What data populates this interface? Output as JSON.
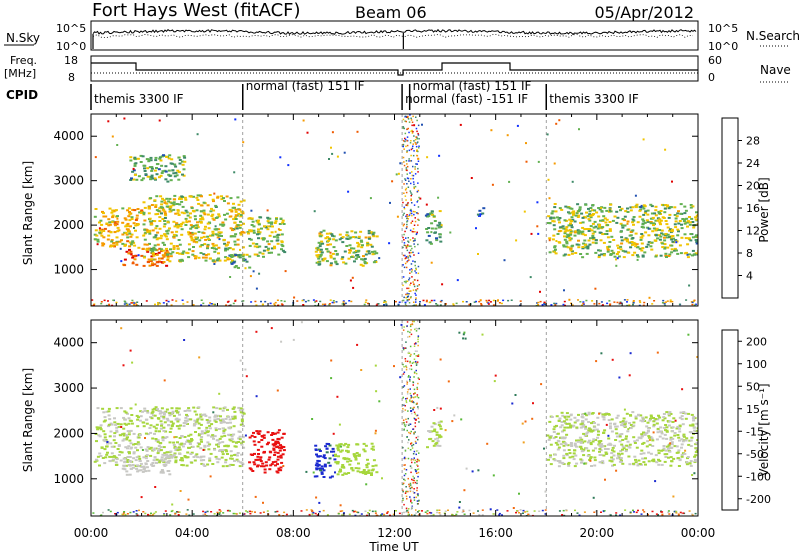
{
  "header": {
    "station": "Fort Hays West (fitACF)",
    "beam": "Beam 06",
    "date": "05/Apr/2012"
  },
  "summary": {
    "nsky_label": "N.Sky",
    "nsearch_label": "N.Search",
    "freq_label_1": "Freq.",
    "freq_label_2": "[MHz]",
    "nave_label": "Nave",
    "cpid_label": "CPID",
    "nsky_ticks": [
      "10^5",
      "10^0"
    ],
    "nsearch_ticks": [
      "10^5",
      "10^0"
    ],
    "freq_ticks": [
      "18",
      "8"
    ],
    "nave_ticks": [
      "60",
      "0"
    ]
  },
  "cpid_segments": [
    {
      "label": "themis 3300 IF",
      "start": 0.0
    },
    {
      "label": "normal (fast) 151 IF",
      "start": 6.0
    },
    {
      "label": "normal (fast) -151 IF",
      "start": 12.3
    },
    {
      "label": "normal (fast) 151 IF",
      "start": 12.6
    },
    {
      "label": "themis 3300 IF",
      "start": 18.0
    }
  ],
  "axes": {
    "ylabel": "Slant Range [km]",
    "xlabel": "Time UT",
    "yticks": [
      "1000",
      "2000",
      "3000",
      "4000"
    ],
    "xticks": [
      "00:00",
      "04:00",
      "08:00",
      "12:00",
      "16:00",
      "20:00",
      "00:00"
    ]
  },
  "colorbars": {
    "power": {
      "label": "Power [dB]",
      "ticks": [
        "4",
        "8",
        "12",
        "16",
        "20",
        "24",
        "28"
      ],
      "colors": [
        "#1030ff",
        "#2050b0",
        "#3e8a68",
        "#62b050",
        "#f0c400",
        "#f59a00",
        "#ef5a00",
        "#e00000"
      ]
    },
    "velocity": {
      "label": "Velocity [m s⁻¹]",
      "ticks": [
        "200",
        "100",
        "50",
        "15",
        "-15",
        "-50",
        "-100",
        "-200"
      ],
      "colors": [
        "#1a2ad0",
        "#2e7a58",
        "#58b838",
        "#a6d63c",
        "#c8c8c4",
        "#f0a020",
        "#f26a10",
        "#e81010"
      ]
    }
  },
  "chart_data": [
    {
      "type": "heatmap",
      "title": "Power",
      "quantity": "Power [dB]",
      "xlabel": "Time UT",
      "ylabel": "Slant Range [km]",
      "xlim": [
        0,
        24
      ],
      "ylim": [
        180,
        4500
      ],
      "clim": [
        0,
        30
      ],
      "regions": [
        {
          "t0": 0.1,
          "t1": 2.0,
          "r0": 1500,
          "r1": 2400,
          "value": 18
        },
        {
          "t0": 1.2,
          "t1": 3.0,
          "r0": 1100,
          "r1": 1500,
          "value": 24
        },
        {
          "t0": 2.0,
          "t1": 6.0,
          "r0": 1200,
          "r1": 2700,
          "value": 16
        },
        {
          "t0": 1.5,
          "t1": 3.7,
          "r0": 3000,
          "r1": 3600,
          "value": 12
        },
        {
          "t0": 6.1,
          "t1": 7.6,
          "r0": 1300,
          "r1": 2200,
          "value": 14
        },
        {
          "t0": 5.4,
          "t1": 6.3,
          "r0": 1050,
          "r1": 1350,
          "value": 10
        },
        {
          "t0": 8.8,
          "t1": 11.3,
          "r0": 1100,
          "r1": 1900,
          "value": 14
        },
        {
          "t0": 13.2,
          "t1": 13.8,
          "r0": 1600,
          "r1": 2400,
          "value": 12
        },
        {
          "t0": 15.2,
          "t1": 15.5,
          "r0": 2200,
          "r1": 2450,
          "value": 6
        },
        {
          "t0": 18.0,
          "t1": 24.0,
          "r0": 1300,
          "r1": 2500,
          "value": 14
        }
      ]
    },
    {
      "type": "heatmap",
      "title": "Velocity",
      "quantity": "Velocity [m s⁻¹]",
      "xlabel": "Time UT",
      "ylabel": "Slant Range [km]",
      "xlim": [
        0,
        24
      ],
      "ylim": [
        180,
        4500
      ],
      "clim": [
        -250,
        250
      ],
      "regions": [
        {
          "t0": 0.1,
          "t1": 6.0,
          "r0": 1300,
          "r1": 2600,
          "value": 0
        },
        {
          "t0": 1.2,
          "t1": 3.2,
          "r0": 1100,
          "r1": 1500,
          "value": -30
        },
        {
          "t0": 6.2,
          "t1": 7.6,
          "r0": 1150,
          "r1": 2100,
          "value": -220
        },
        {
          "t0": 8.8,
          "t1": 9.6,
          "r0": 1050,
          "r1": 1800,
          "value": 210
        },
        {
          "t0": 9.6,
          "t1": 11.3,
          "r0": 1100,
          "r1": 1800,
          "value": 30
        },
        {
          "t0": 13.2,
          "t1": 13.8,
          "r0": 1700,
          "r1": 2300,
          "value": 0
        },
        {
          "t0": 18.0,
          "t1": 24.0,
          "r0": 1300,
          "r1": 2500,
          "value": 0
        }
      ]
    }
  ]
}
